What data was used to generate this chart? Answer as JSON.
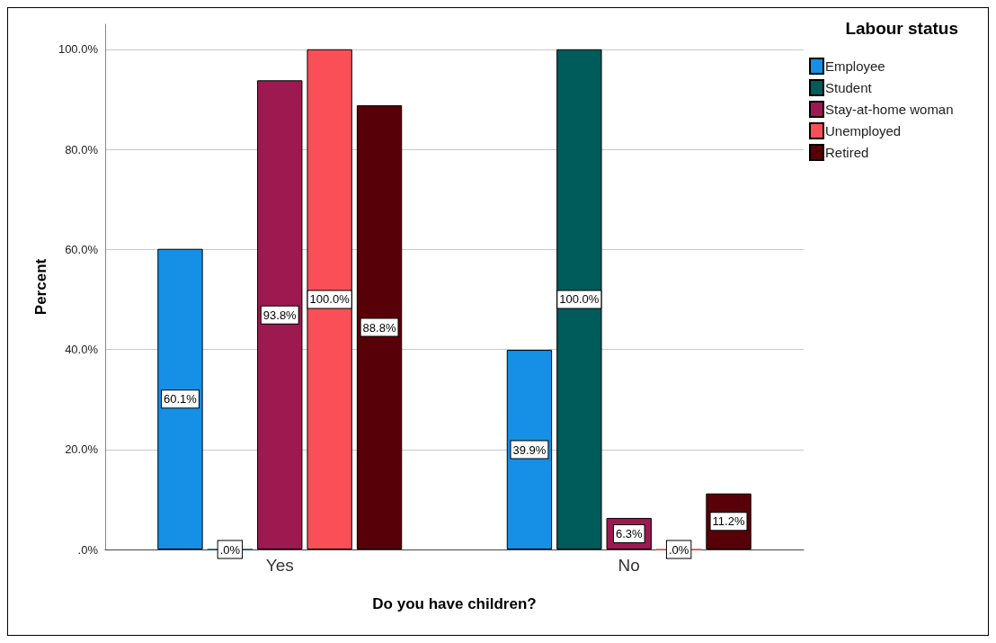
{
  "chart_data": {
    "type": "bar",
    "xlabel": "Do you have children?",
    "ylabel": "Percent",
    "legend_title": "Labour status",
    "legend": "top right",
    "grid": "y",
    "categories": [
      "Yes",
      "No"
    ],
    "ylim": [
      0,
      105
    ],
    "yticks": [
      {
        "value": 0,
        "label": ".0%"
      },
      {
        "value": 20,
        "label": "20.0%"
      },
      {
        "value": 40,
        "label": "40.0%"
      },
      {
        "value": 60,
        "label": "60.0%"
      },
      {
        "value": 80,
        "label": "80.0%"
      },
      {
        "value": 100,
        "label": "100.0%"
      }
    ],
    "series": [
      {
        "name": "Employee",
        "color": "#1590e6",
        "values": [
          60.1,
          39.9
        ],
        "value_labels": [
          "60.1%",
          "39.9%"
        ]
      },
      {
        "name": "Student",
        "color": "#005b5b",
        "values": [
          0,
          100
        ],
        "value_labels": [
          ".0%",
          "100.0%"
        ]
      },
      {
        "name": "Stay-at-home woman",
        "color": "#9c1a50",
        "values": [
          93.8,
          6.3
        ],
        "value_labels": [
          "93.8%",
          "6.3%"
        ]
      },
      {
        "name": "Unemployed",
        "color": "#fa4f57",
        "values": [
          100,
          0
        ],
        "value_labels": [
          "100.0%",
          ".0%"
        ]
      },
      {
        "name": "Retired",
        "color": "#580008",
        "values": [
          88.8,
          11.2
        ],
        "value_labels": [
          "88.8%",
          "11.2%"
        ]
      }
    ]
  }
}
